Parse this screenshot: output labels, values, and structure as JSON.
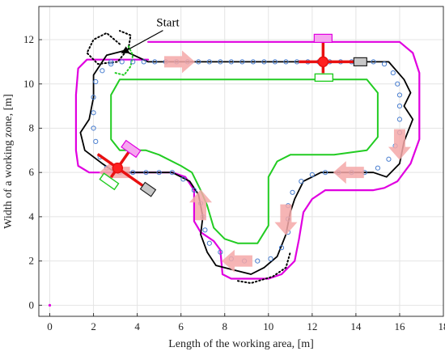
{
  "chart_data": {
    "type": "line",
    "title": "",
    "xlabel": "Length of the working area, [m]",
    "ylabel": "Width of a working zone, [m]",
    "xlim": [
      -0.5,
      18
    ],
    "ylim": [
      -0.5,
      13.5
    ],
    "xticks": [
      0,
      2,
      4,
      6,
      8,
      10,
      12,
      14,
      16,
      18
    ],
    "yticks": [
      0,
      2,
      4,
      6,
      8,
      10,
      12
    ],
    "grid": true,
    "annotation": {
      "text": "Start",
      "x": 5.4,
      "y": 12.6,
      "arrow_to": [
        3.3,
        11.4
      ]
    },
    "colors": {
      "magenta": "#e000e0",
      "green": "#22cc22",
      "black": "#000000",
      "blue": "#4a7fd0",
      "red": "#e81010",
      "arrow": "#f4a8a8",
      "grid": "#e4e4e4"
    },
    "series": [
      {
        "style": "magenta-solid",
        "points": [
          [
            4.5,
            11.1
          ],
          [
            1.7,
            11.1
          ],
          [
            1.3,
            10.7
          ],
          [
            1.2,
            9.5
          ],
          [
            1.2,
            7.0
          ],
          [
            1.3,
            6.3
          ],
          [
            1.8,
            6.0
          ],
          [
            5.6,
            6.0
          ],
          [
            6.2,
            5.8
          ],
          [
            6.6,
            5.2
          ],
          [
            6.6,
            3.8
          ],
          [
            6.9,
            3.3
          ],
          [
            7.5,
            2.9
          ],
          [
            7.8,
            2.5
          ],
          [
            7.9,
            1.4
          ],
          [
            8.3,
            1.2
          ],
          [
            10.0,
            1.2
          ],
          [
            10.6,
            1.4
          ],
          [
            11.2,
            2.0
          ],
          [
            11.4,
            3.0
          ],
          [
            11.6,
            4.2
          ],
          [
            12.0,
            4.8
          ],
          [
            12.6,
            5.2
          ],
          [
            14.8,
            5.2
          ],
          [
            15.3,
            5.3
          ],
          [
            15.9,
            5.6
          ],
          [
            16.5,
            6.4
          ],
          [
            16.9,
            7.5
          ],
          [
            16.9,
            10.5
          ],
          [
            16.6,
            11.4
          ],
          [
            16.0,
            11.9
          ],
          [
            4.5,
            11.9
          ]
        ]
      },
      {
        "style": "green-solid",
        "points": [
          [
            4.8,
            10.2
          ],
          [
            14.5,
            10.2
          ],
          [
            15.0,
            9.6
          ],
          [
            15.0,
            7.6
          ],
          [
            14.5,
            7.0
          ],
          [
            13.0,
            6.8
          ],
          [
            11.0,
            6.8
          ],
          [
            10.4,
            6.5
          ],
          [
            10.0,
            5.8
          ],
          [
            10.0,
            3.6
          ],
          [
            9.5,
            2.8
          ],
          [
            8.6,
            2.8
          ],
          [
            8.0,
            3.0
          ],
          [
            7.5,
            3.5
          ],
          [
            7.2,
            4.5
          ],
          [
            6.9,
            5.2
          ],
          [
            6.5,
            6.0
          ],
          [
            6.0,
            6.3
          ],
          [
            5.0,
            6.8
          ],
          [
            4.4,
            7.0
          ],
          [
            3.2,
            7.0
          ],
          [
            2.8,
            7.5
          ],
          [
            2.8,
            9.5
          ],
          [
            3.2,
            10.2
          ],
          [
            4.8,
            10.2
          ]
        ]
      },
      {
        "style": "black-solid",
        "points": [
          [
            4.5,
            11.0
          ],
          [
            15.5,
            11.0
          ],
          [
            16.2,
            10.2
          ],
          [
            16.5,
            9.6
          ],
          [
            16.2,
            9.0
          ],
          [
            16.6,
            8.4
          ],
          [
            16.2,
            7.4
          ],
          [
            16.0,
            6.4
          ],
          [
            15.4,
            5.8
          ],
          [
            14.8,
            6.0
          ],
          [
            14.0,
            6.0
          ],
          [
            12.4,
            6.0
          ],
          [
            11.6,
            5.6
          ],
          [
            11.2,
            4.8
          ],
          [
            11.0,
            4.2
          ],
          [
            10.8,
            3.2
          ],
          [
            10.4,
            2.2
          ],
          [
            9.8,
            1.7
          ],
          [
            9.2,
            1.4
          ],
          [
            8.4,
            1.6
          ],
          [
            7.6,
            1.8
          ],
          [
            7.2,
            2.4
          ],
          [
            6.9,
            3.2
          ],
          [
            7.0,
            4.0
          ],
          [
            6.8,
            5.0
          ],
          [
            6.4,
            5.6
          ],
          [
            5.6,
            6.0
          ],
          [
            4.2,
            6.0
          ],
          [
            3.0,
            6.0
          ],
          [
            2.4,
            6.4
          ],
          [
            1.6,
            7.0
          ],
          [
            1.4,
            7.8
          ],
          [
            1.8,
            8.4
          ],
          [
            2.0,
            9.4
          ],
          [
            2.0,
            10.4
          ],
          [
            2.6,
            11.3
          ],
          [
            3.4,
            11.5
          ],
          [
            4.5,
            11.0
          ]
        ]
      },
      {
        "style": "black-dotted",
        "points": [
          [
            3.2,
            11.8
          ],
          [
            2.6,
            12.3
          ],
          [
            2.0,
            12.0
          ],
          [
            1.7,
            11.4
          ],
          [
            2.2,
            10.9
          ],
          [
            3.1,
            11.0
          ],
          [
            3.6,
            11.6
          ],
          [
            3.7,
            12.2
          ],
          [
            3.2,
            12.4
          ]
        ]
      },
      {
        "style": "black-dotted",
        "points": [
          [
            8.6,
            1.1
          ],
          [
            9.2,
            1.0
          ],
          [
            10.2,
            1.3
          ],
          [
            10.8,
            1.7
          ],
          [
            11.0,
            2.4
          ]
        ]
      },
      {
        "style": "green-dotted",
        "points": [
          [
            3.6,
            11.7
          ],
          [
            3.8,
            11.3
          ],
          [
            3.7,
            10.8
          ],
          [
            3.4,
            10.4
          ],
          [
            3.0,
            10.5
          ]
        ]
      },
      {
        "style": "blue-circles",
        "points": [
          [
            2.8,
            11.0
          ],
          [
            3.3,
            11.0
          ],
          [
            3.8,
            11.0
          ],
          [
            4.3,
            11.0
          ],
          [
            4.8,
            11.0
          ],
          [
            5.3,
            11.0
          ],
          [
            5.8,
            11.0
          ],
          [
            6.3,
            11.0
          ],
          [
            6.8,
            11.0
          ],
          [
            7.3,
            11.0
          ],
          [
            7.8,
            11.0
          ],
          [
            8.3,
            11.0
          ],
          [
            8.8,
            11.0
          ],
          [
            9.3,
            11.0
          ],
          [
            9.8,
            11.0
          ],
          [
            10.3,
            11.0
          ],
          [
            10.8,
            11.0
          ],
          [
            11.3,
            11.0
          ],
          [
            11.8,
            11.0
          ],
          [
            12.3,
            11.0
          ],
          [
            12.8,
            11.0
          ],
          [
            13.3,
            11.0
          ],
          [
            13.8,
            11.0
          ],
          [
            14.3,
            11.0
          ],
          [
            14.8,
            11.0
          ],
          [
            15.3,
            10.9
          ],
          [
            15.7,
            10.5
          ],
          [
            15.9,
            10.0
          ],
          [
            16.0,
            9.5
          ],
          [
            16.0,
            9.0
          ],
          [
            16.0,
            8.4
          ],
          [
            16.0,
            7.8
          ],
          [
            15.8,
            7.2
          ],
          [
            15.5,
            6.6
          ],
          [
            15.0,
            6.2
          ],
          [
            14.4,
            6.0
          ],
          [
            13.8,
            6.0
          ],
          [
            13.2,
            6.0
          ],
          [
            12.6,
            6.0
          ],
          [
            12.0,
            5.9
          ],
          [
            11.5,
            5.6
          ],
          [
            11.1,
            5.1
          ],
          [
            10.9,
            4.5
          ],
          [
            10.9,
            3.9
          ],
          [
            10.9,
            3.3
          ],
          [
            10.6,
            2.6
          ],
          [
            10.1,
            2.1
          ],
          [
            9.5,
            2.0
          ],
          [
            8.9,
            2.0
          ],
          [
            8.3,
            2.1
          ],
          [
            7.8,
            2.4
          ],
          [
            7.3,
            2.8
          ],
          [
            7.1,
            3.4
          ],
          [
            7.0,
            4.0
          ],
          [
            6.9,
            4.6
          ],
          [
            6.6,
            5.2
          ],
          [
            6.1,
            5.7
          ],
          [
            5.6,
            6.0
          ],
          [
            5.0,
            6.0
          ],
          [
            4.4,
            6.0
          ],
          [
            3.8,
            6.0
          ],
          [
            3.2,
            6.0
          ],
          [
            2.6,
            6.2
          ],
          [
            2.3,
            6.7
          ],
          [
            2.1,
            7.4
          ],
          [
            2.0,
            8.0
          ],
          [
            2.0,
            8.7
          ],
          [
            2.0,
            9.4
          ],
          [
            2.1,
            10.1
          ],
          [
            2.4,
            10.6
          ],
          [
            2.8,
            10.9
          ]
        ]
      }
    ],
    "direction_arrows": [
      {
        "x": 5.9,
        "y": 11.0,
        "dir": "right"
      },
      {
        "x": 16.0,
        "y": 7.3,
        "dir": "down"
      },
      {
        "x": 13.7,
        "y": 6.0,
        "dir": "left"
      },
      {
        "x": 10.8,
        "y": 3.9,
        "dir": "down"
      },
      {
        "x": 8.6,
        "y": 2.0,
        "dir": "left"
      },
      {
        "x": 6.9,
        "y": 4.5,
        "dir": "up"
      },
      {
        "x": 3.0,
        "y": 6.0,
        "dir": "left"
      }
    ],
    "machines": [
      {
        "x": 12.5,
        "y": 11.0,
        "angle": 0
      },
      {
        "x": 3.1,
        "y": 6.2,
        "angle": 35
      }
    ]
  }
}
